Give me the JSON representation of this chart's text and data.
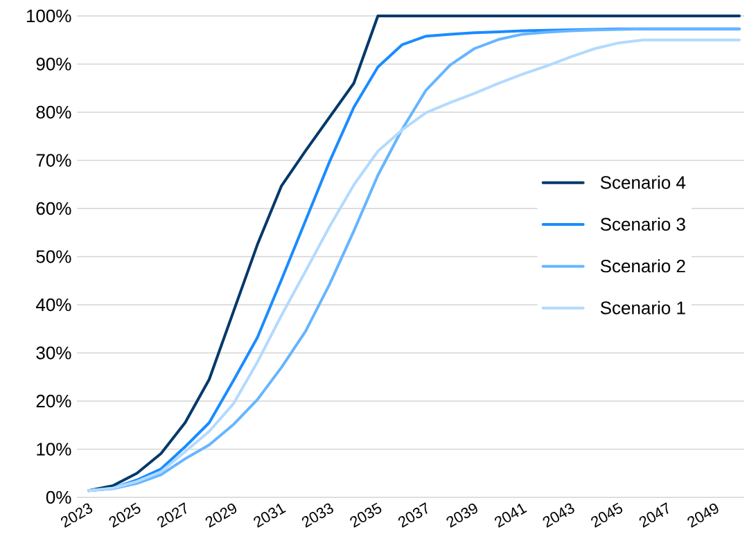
{
  "chart_data": {
    "type": "line",
    "categories": [
      "2023",
      null,
      "2025",
      null,
      "2027",
      null,
      "2029",
      null,
      "2031",
      null,
      "2033",
      null,
      "2035",
      null,
      "2037",
      null,
      "2039",
      null,
      "2041",
      null,
      "2043",
      null,
      "2045",
      null,
      "2047",
      null,
      "2049",
      null
    ],
    "ylim": [
      0,
      100
    ],
    "yticks": [
      {
        "value": 0,
        "label": "0%"
      },
      {
        "value": 10,
        "label": "10%"
      },
      {
        "value": 20,
        "label": "20%"
      },
      {
        "value": 30,
        "label": "30%"
      },
      {
        "value": 40,
        "label": "40%"
      },
      {
        "value": 50,
        "label": "50%"
      },
      {
        "value": 60,
        "label": "60%"
      },
      {
        "value": 70,
        "label": "70%"
      },
      {
        "value": 80,
        "label": "80%"
      },
      {
        "value": 90,
        "label": "90%"
      },
      {
        "value": 100,
        "label": "100%"
      }
    ],
    "grid": "y",
    "legend": "right",
    "line_style": "solid",
    "marker": "none",
    "series": [
      {
        "name": "Scenario 4",
        "color": "#02396a",
        "values": [
          1.4,
          2.4,
          5.0,
          9.1,
          15.5,
          24.5,
          38.5,
          52.5,
          64.7,
          72,
          79,
          86.0,
          100,
          100,
          100,
          100,
          100,
          100,
          100,
          100,
          100,
          100,
          100,
          100,
          100,
          100,
          100,
          100
        ]
      },
      {
        "name": "Scenario 3",
        "color": "#1a8cff",
        "values": [
          1.4,
          1.9,
          3.6,
          5.9,
          10.5,
          15.5,
          24.2,
          33.2,
          45.2,
          57.5,
          69.8,
          81.0,
          89.4,
          94.0,
          95.8,
          96.2,
          96.5,
          96.7,
          96.9,
          97.0,
          97.1,
          97.2,
          97.3,
          97.3,
          97.3,
          97.3,
          97.3,
          97.3
        ]
      },
      {
        "name": "Scenario 2",
        "color": "#66b5ff",
        "values": [
          1.4,
          1.8,
          2.9,
          4.7,
          8.0,
          10.9,
          15.1,
          20.3,
          27,
          34.5,
          44.3,
          55.3,
          66.9,
          76.4,
          84.6,
          89.8,
          93.2,
          95.1,
          96.2,
          96.6,
          96.9,
          97.1,
          97.2,
          97.3,
          97.3,
          97.3,
          97.3,
          97.3
        ]
      },
      {
        "name": "Scenario 1",
        "color": "#b3daff",
        "values": [
          1.4,
          1.9,
          3.3,
          5.3,
          9.5,
          13.7,
          19.4,
          28.1,
          37.8,
          47,
          56.3,
          64.9,
          71.9,
          76.3,
          79.9,
          82.0,
          83.9,
          86.0,
          87.9,
          89.6,
          91.5,
          93.2,
          94.4,
          95.0,
          95.0,
          95.0,
          95.0,
          95.0
        ]
      }
    ]
  }
}
